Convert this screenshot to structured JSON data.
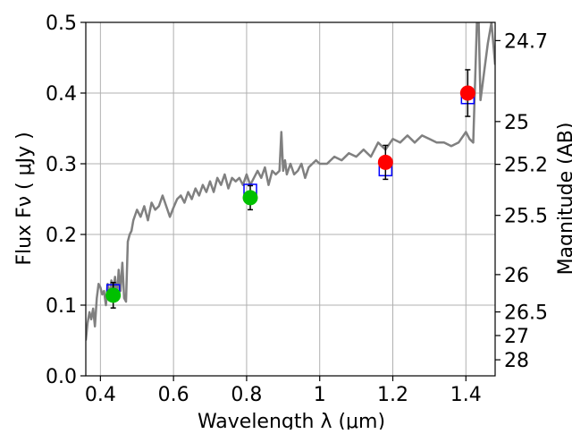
{
  "chart_data": {
    "type": "scatter",
    "xlabel": "Wavelength  λ (μm)",
    "ylabel": "Flux  Fν  ( μJy )",
    "y2label": "Magnitude (AB)",
    "xlim": [
      0.36,
      1.48
    ],
    "ylim": [
      0.0,
      0.5
    ],
    "grid": true,
    "xticks": [
      0.4,
      0.6,
      0.8,
      1.0,
      1.2,
      1.4
    ],
    "xtick_labels": [
      "0.4",
      "0.6",
      "0.8",
      "1",
      "1.2",
      "1.4"
    ],
    "yticks": [
      0.0,
      0.1,
      0.2,
      0.3,
      0.4,
      0.5
    ],
    "ytick_labels": [
      "0.0",
      "0.1",
      "0.2",
      "0.3",
      "0.4",
      "0.5"
    ],
    "y2ticks": [
      {
        "label": "24.7",
        "flux": 0.4742
      },
      {
        "label": "25",
        "flux": 0.3597
      },
      {
        "label": "25.2",
        "flux": 0.2992
      },
      {
        "label": "25.5",
        "flux": 0.227
      },
      {
        "label": "26",
        "flux": 0.1432
      },
      {
        "label": "26.5",
        "flux": 0.0904
      },
      {
        "label": "27",
        "flux": 0.057
      },
      {
        "label": "28",
        "flux": 0.0227
      }
    ],
    "series": [
      {
        "kind": "model_spectrum",
        "color": "#808080",
        "x": [
          0.36,
          0.365,
          0.37,
          0.375,
          0.38,
          0.385,
          0.39,
          0.395,
          0.4,
          0.405,
          0.41,
          0.415,
          0.42,
          0.425,
          0.43,
          0.435,
          0.44,
          0.445,
          0.45,
          0.455,
          0.46,
          0.465,
          0.47,
          0.475,
          0.48,
          0.485,
          0.49,
          0.5,
          0.51,
          0.52,
          0.53,
          0.54,
          0.55,
          0.56,
          0.57,
          0.58,
          0.59,
          0.6,
          0.61,
          0.62,
          0.63,
          0.64,
          0.65,
          0.66,
          0.67,
          0.68,
          0.69,
          0.7,
          0.71,
          0.72,
          0.73,
          0.74,
          0.75,
          0.76,
          0.77,
          0.78,
          0.79,
          0.8,
          0.81,
          0.82,
          0.83,
          0.84,
          0.85,
          0.86,
          0.87,
          0.88,
          0.89,
          0.895,
          0.9,
          0.905,
          0.91,
          0.92,
          0.93,
          0.94,
          0.95,
          0.96,
          0.97,
          0.98,
          0.99,
          1.0,
          1.02,
          1.04,
          1.06,
          1.08,
          1.1,
          1.12,
          1.14,
          1.16,
          1.18,
          1.2,
          1.22,
          1.24,
          1.26,
          1.28,
          1.3,
          1.32,
          1.34,
          1.36,
          1.38,
          1.4,
          1.41,
          1.42,
          1.43,
          1.435,
          1.44,
          1.445,
          1.45,
          1.46,
          1.47,
          1.48
        ],
        "y": [
          0.05,
          0.075,
          0.09,
          0.08,
          0.095,
          0.07,
          0.11,
          0.13,
          0.125,
          0.115,
          0.12,
          0.1,
          0.13,
          0.11,
          0.135,
          0.12,
          0.14,
          0.11,
          0.15,
          0.12,
          0.16,
          0.11,
          0.105,
          0.19,
          0.2,
          0.205,
          0.22,
          0.235,
          0.225,
          0.24,
          0.22,
          0.245,
          0.235,
          0.24,
          0.255,
          0.24,
          0.225,
          0.238,
          0.25,
          0.255,
          0.245,
          0.26,
          0.25,
          0.265,
          0.255,
          0.27,
          0.26,
          0.275,
          0.26,
          0.28,
          0.27,
          0.285,
          0.265,
          0.28,
          0.275,
          0.28,
          0.27,
          0.285,
          0.27,
          0.28,
          0.29,
          0.28,
          0.295,
          0.27,
          0.29,
          0.285,
          0.29,
          0.345,
          0.29,
          0.305,
          0.285,
          0.3,
          0.285,
          0.29,
          0.3,
          0.28,
          0.295,
          0.3,
          0.305,
          0.3,
          0.3,
          0.31,
          0.305,
          0.315,
          0.31,
          0.32,
          0.31,
          0.33,
          0.32,
          0.335,
          0.33,
          0.34,
          0.33,
          0.34,
          0.335,
          0.33,
          0.33,
          0.325,
          0.33,
          0.345,
          0.335,
          0.33,
          0.5,
          0.5,
          0.39,
          0.41,
          0.43,
          0.47,
          0.5,
          0.44
        ],
        "smooth_segment_note": ""
      },
      {
        "kind": "model_photometry",
        "marker": "open-square",
        "color": "#0000ff",
        "x": [
          0.435,
          0.81,
          1.18,
          1.405
        ],
        "y": [
          0.12,
          0.262,
          0.292,
          0.394
        ]
      },
      {
        "kind": "detected_photometry",
        "marker": "circle",
        "points": [
          {
            "x": 0.435,
            "y": 0.114,
            "err": 0.018,
            "color": "#00c000"
          },
          {
            "x": 0.81,
            "y": 0.252,
            "err": 0.017,
            "color": "#00c000"
          },
          {
            "x": 1.18,
            "y": 0.302,
            "err": 0.024,
            "color": "#ff0000"
          },
          {
            "x": 1.405,
            "y": 0.4,
            "err": 0.033,
            "color": "#ff0000"
          }
        ]
      }
    ],
    "colors": {
      "grid": "#b0b0b0",
      "axes": "#000000",
      "spectrum": "#808080",
      "model_points": "#0000ff",
      "errorbar": "#000000"
    }
  }
}
